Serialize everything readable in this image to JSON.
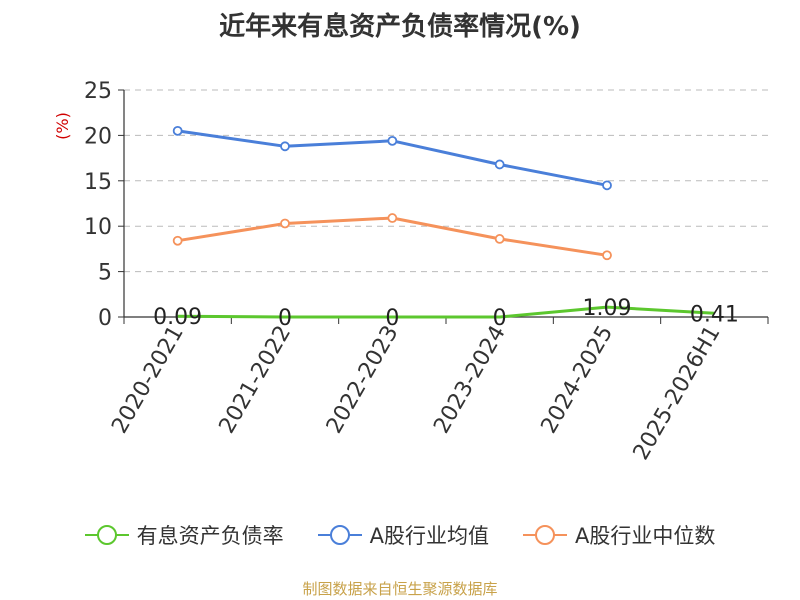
{
  "chart_data": {
    "type": "line",
    "title": "近年来有息资产负债率情况(%)",
    "ylabel": "(%)",
    "categories": [
      "2020-2021",
      "2021-2022",
      "2022-2023",
      "2023-2024",
      "2024-2025",
      "2025-2026H1"
    ],
    "ylim": [
      0,
      25
    ],
    "yticks": [
      "0",
      "5",
      "10",
      "15",
      "20",
      "25"
    ],
    "grid": true,
    "legend_position": "bottom",
    "series": [
      {
        "name": "有息资产负债率",
        "color": "#5cc72e",
        "values": [
          0.09,
          0,
          0,
          0,
          1.09,
          0.41
        ],
        "labels": [
          "0.09",
          "0",
          "0",
          "0",
          "1.09",
          "0.41"
        ]
      },
      {
        "name": "A股行业均值",
        "color": "#4a7fd9",
        "values": [
          20.5,
          18.8,
          19.4,
          16.8,
          14.5,
          null
        ]
      },
      {
        "name": "A股行业中位数",
        "color": "#f5925b",
        "values": [
          8.4,
          10.3,
          10.9,
          8.6,
          6.8,
          null
        ]
      }
    ]
  },
  "source_note": "制图数据来自恒生聚源数据库"
}
